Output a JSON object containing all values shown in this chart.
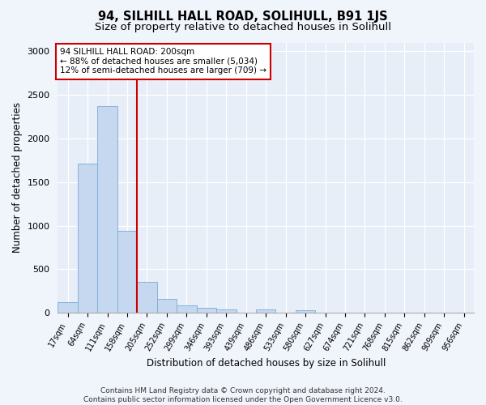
{
  "title": "94, SILHILL HALL ROAD, SOLIHULL, B91 1JS",
  "subtitle": "Size of property relative to detached houses in Solihull",
  "xlabel": "Distribution of detached houses by size in Solihull",
  "ylabel": "Number of detached properties",
  "categories": [
    "17sqm",
    "64sqm",
    "111sqm",
    "158sqm",
    "205sqm",
    "252sqm",
    "299sqm",
    "346sqm",
    "393sqm",
    "439sqm",
    "486sqm",
    "533sqm",
    "580sqm",
    "627sqm",
    "674sqm",
    "721sqm",
    "768sqm",
    "815sqm",
    "862sqm",
    "909sqm",
    "956sqm"
  ],
  "values": [
    120,
    1710,
    2370,
    940,
    350,
    155,
    85,
    55,
    35,
    5,
    40,
    5,
    30,
    5,
    5,
    0,
    0,
    0,
    0,
    0,
    0
  ],
  "bar_color": "#c5d8f0",
  "bar_edge_color": "#7aabd4",
  "annotation_box_text": "94 SILHILL HALL ROAD: 200sqm\n← 88% of detached houses are smaller (5,034)\n12% of semi-detached houses are larger (709) →",
  "vline_x_index": 4,
  "vline_color": "#cc0000",
  "annotation_box_color": "#cc0000",
  "annotation_box_facecolor": "white",
  "ylim": [
    0,
    3100
  ],
  "yticks": [
    0,
    500,
    1000,
    1500,
    2000,
    2500,
    3000
  ],
  "footer_text": "Contains HM Land Registry data © Crown copyright and database right 2024.\nContains public sector information licensed under the Open Government Licence v3.0.",
  "title_fontsize": 10.5,
  "subtitle_fontsize": 9.5,
  "xlabel_fontsize": 8.5,
  "ylabel_fontsize": 8.5,
  "footer_fontsize": 6.5,
  "annotation_fontsize": 7.5,
  "tick_fontsize": 7,
  "bg_color": "#f0f4fb",
  "plot_bg_color": "#e8eef8"
}
